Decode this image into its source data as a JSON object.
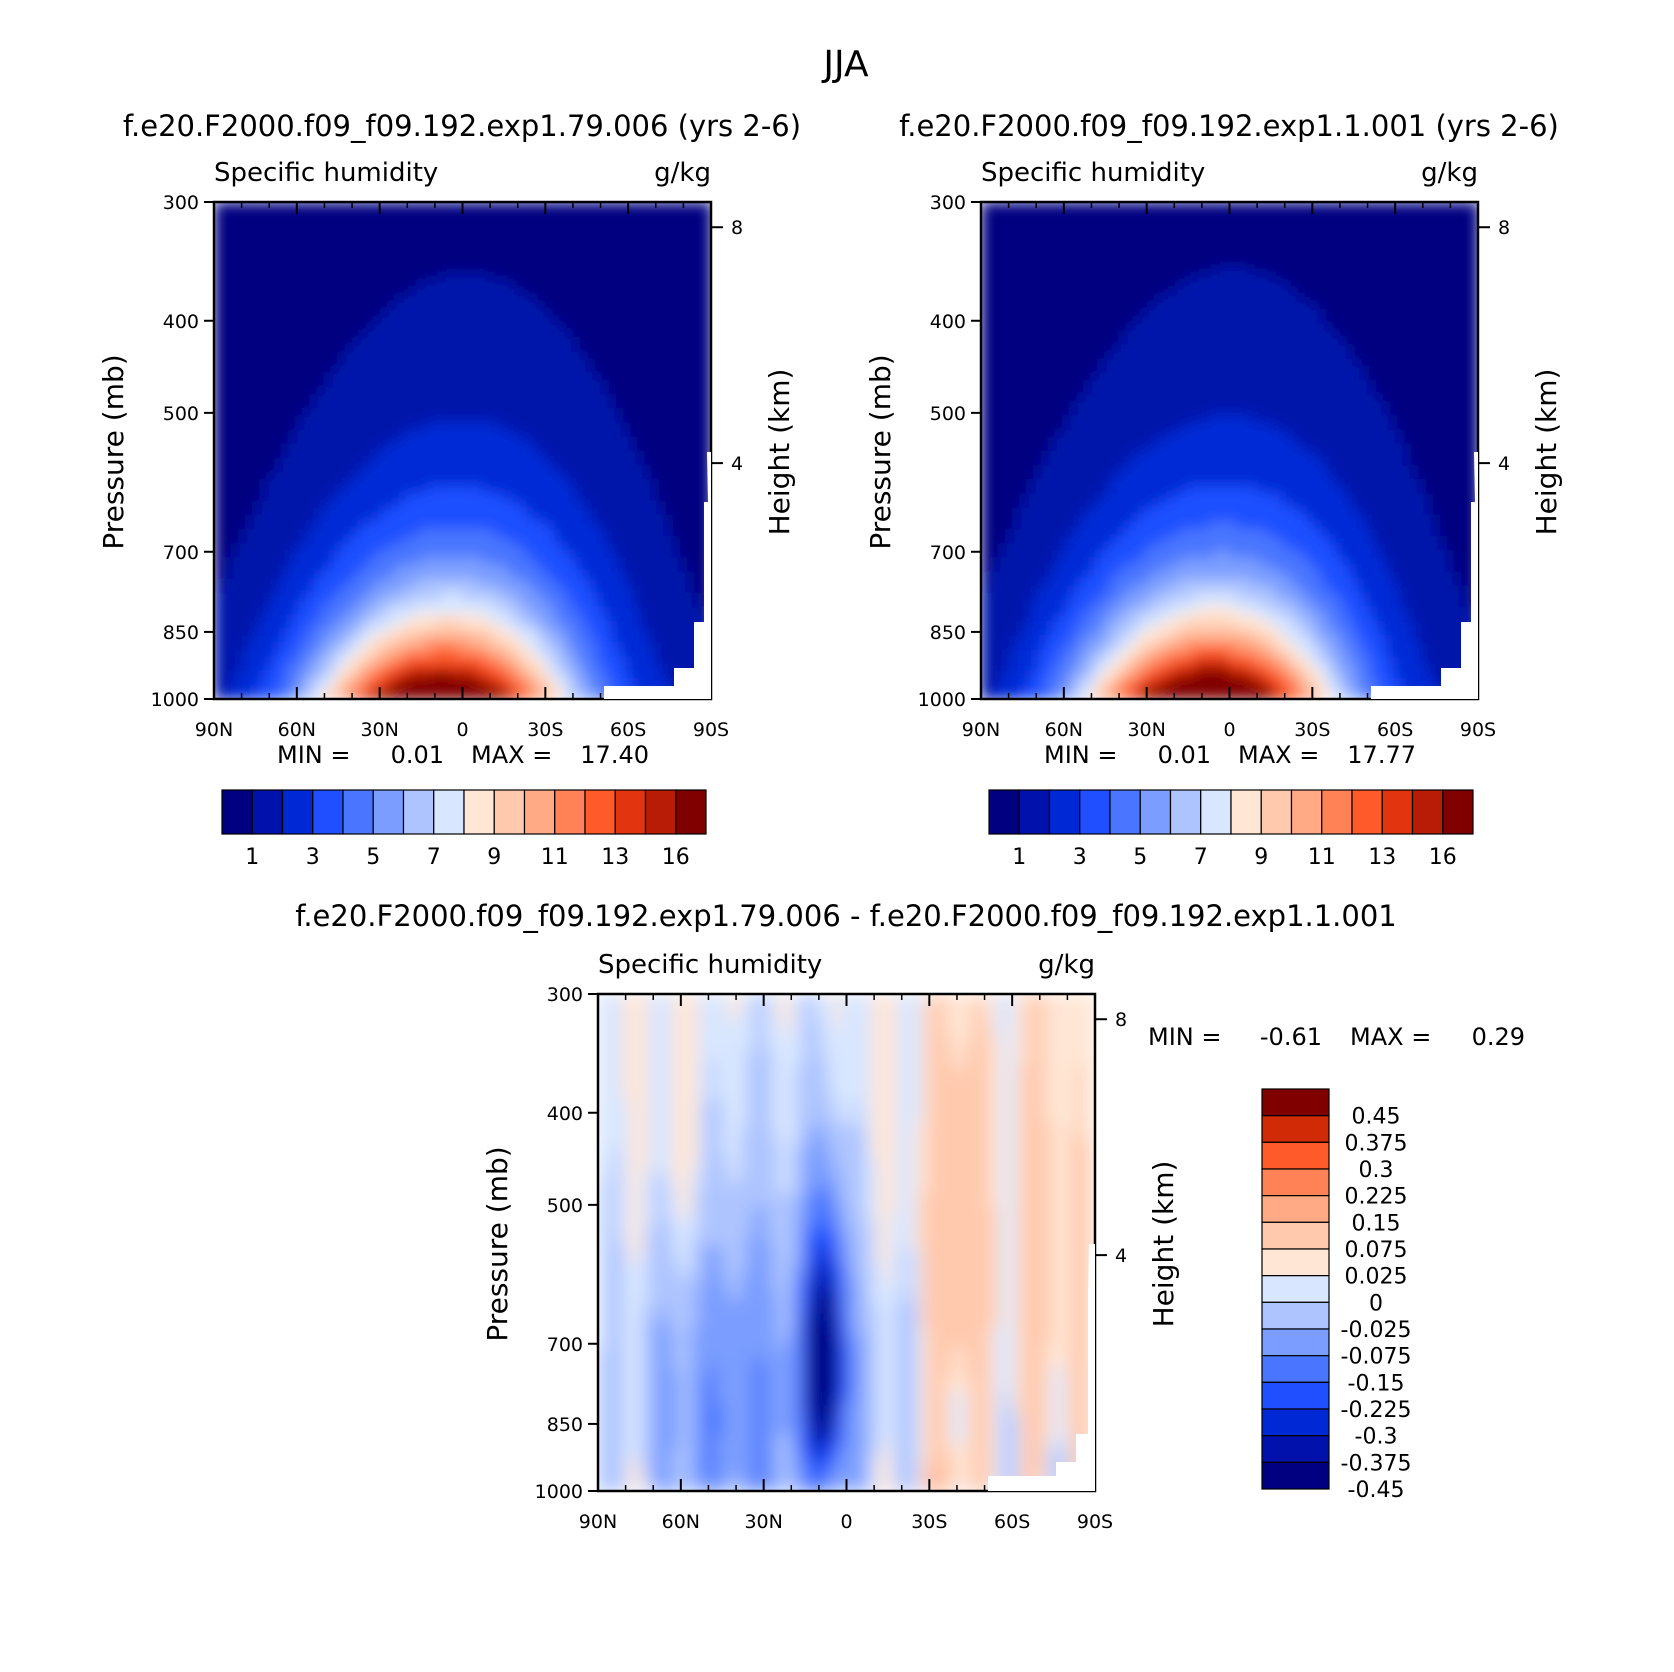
{
  "figure_title": "JJA",
  "colors": {
    "abs_levels": [
      "#000080",
      "#0012ab",
      "#0029d6",
      "#1f4fff",
      "#4a76ff",
      "#7a9dff",
      "#adc4ff",
      "#d8e6ff",
      "#ffe6d5",
      "#ffc9ad",
      "#ffa985",
      "#ff8257",
      "#ff5a2a",
      "#e33410",
      "#b81c06",
      "#800000"
    ],
    "diff_levels": [
      "#000080",
      "#0012ab",
      "#0029d6",
      "#1f4fff",
      "#4a76ff",
      "#7a9dff",
      "#adc4ff",
      "#d8e6ff",
      "#ffe6d5",
      "#ffc9ad",
      "#ffa985",
      "#ff8257",
      "#ff5a2a",
      "#d02a06",
      "#800000"
    ]
  },
  "chart_data": [
    {
      "type": "heatmap",
      "title": "f.e20.F2000.f09_f09.192.exp1.79.006 (yrs 2-6)",
      "subtitle_left": "Specific humidity",
      "subtitle_right": "g/kg",
      "xlabel": "",
      "ylabel": "Pressure (mb)",
      "ylabel_right": "Height (km)",
      "x_ticks": [
        "90N",
        "60N",
        "30N",
        "0",
        "30S",
        "60S",
        "90S"
      ],
      "y_ticks": [
        "300",
        "400",
        "500",
        "700",
        "850",
        "1000"
      ],
      "y_right_ticks": [
        "8",
        "4"
      ],
      "ylim": [
        1000,
        300
      ],
      "y_log": true,
      "min_label": "MIN =",
      "min_value": "0.01",
      "max_label": "MAX =",
      "max_value": "17.40",
      "colorbar_labels": [
        "1",
        "3",
        "5",
        "7",
        "9",
        "11",
        "13",
        "16"
      ],
      "peak": {
        "lat": 8,
        "value": 17.4
      }
    },
    {
      "type": "heatmap",
      "title": "f.e20.F2000.f09_f09.192.exp1.1.001 (yrs 2-6)",
      "subtitle_left": "Specific humidity",
      "subtitle_right": "g/kg",
      "xlabel": "",
      "ylabel": "Pressure (mb)",
      "ylabel_right": "Height (km)",
      "x_ticks": [
        "90N",
        "60N",
        "30N",
        "0",
        "30S",
        "60S",
        "90S"
      ],
      "y_ticks": [
        "300",
        "400",
        "500",
        "700",
        "850",
        "1000"
      ],
      "y_right_ticks": [
        "8",
        "4"
      ],
      "ylim": [
        1000,
        300
      ],
      "y_log": true,
      "min_label": "MIN =",
      "min_value": "0.01",
      "max_label": "MAX =",
      "max_value": "17.77",
      "colorbar_labels": [
        "1",
        "3",
        "5",
        "7",
        "9",
        "11",
        "13",
        "16"
      ],
      "peak": {
        "lat": 8,
        "value": 17.77
      }
    },
    {
      "type": "heatmap",
      "title": "f.e20.F2000.f09_f09.192.exp1.79.006 - f.e20.F2000.f09_f09.192.exp1.1.001",
      "subtitle_left": "Specific humidity",
      "subtitle_right": "g/kg",
      "xlabel": "",
      "ylabel": "Pressure (mb)",
      "ylabel_right": "Height (km)",
      "x_ticks": [
        "90N",
        "60N",
        "30N",
        "0",
        "30S",
        "60S",
        "90S"
      ],
      "y_ticks": [
        "300",
        "400",
        "500",
        "700",
        "850",
        "1000"
      ],
      "y_right_ticks": [
        "8",
        "4"
      ],
      "ylim": [
        1000,
        300
      ],
      "y_log": true,
      "min_label": "MIN =",
      "min_value": "-0.61",
      "max_label": "MAX =",
      "max_value": "0.29",
      "colorbar_labels": [
        "0.45",
        "0.375",
        "0.3",
        "0.225",
        "0.15",
        "0.075",
        "0.025",
        "0",
        "-0.025",
        "-0.075",
        "-0.15",
        "-0.225",
        "-0.3",
        "-0.375",
        "-0.45"
      ]
    }
  ]
}
